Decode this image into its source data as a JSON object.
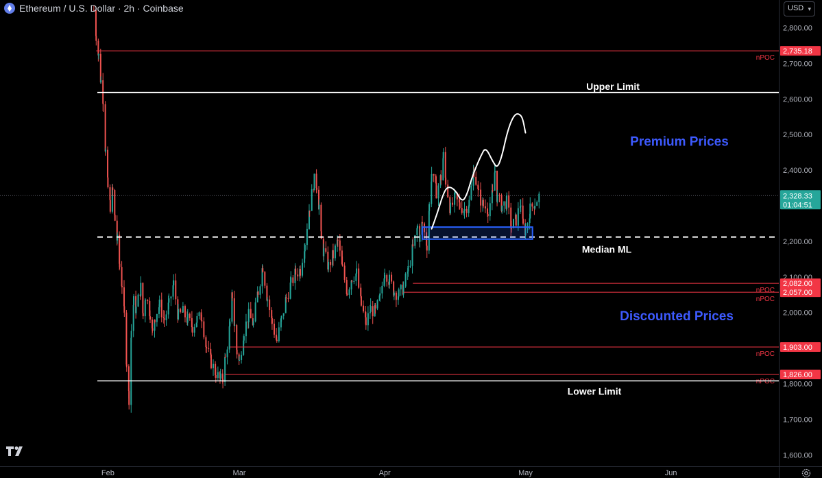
{
  "header": {
    "title": "Ethereum / U.S. Dollar · 2h · Coinbase",
    "currency_button": "USD"
  },
  "colors": {
    "background": "#000000",
    "candle_up": "#26a69a",
    "candle_down": "#ef5350",
    "npoc_line": "#f23645",
    "label_bg": "#f23645",
    "zone_text": "#3d5afe",
    "current_price_bg": "#26a69a",
    "box_stroke": "#2962ff"
  },
  "chart_data": {
    "type": "candlestick",
    "symbol": "Ethereum / U.S. Dollar",
    "interval": "2h",
    "exchange": "Coinbase",
    "y_axis": {
      "ticks": [
        {
          "value": 2800,
          "label": "2,800.00"
        },
        {
          "value": 2700,
          "label": "2,700.00"
        },
        {
          "value": 2600,
          "label": "2,600.00"
        },
        {
          "value": 2500,
          "label": "2,500.00"
        },
        {
          "value": 2400,
          "label": "2,400.00"
        },
        {
          "value": 2200,
          "label": "2,200.00"
        },
        {
          "value": 2100,
          "label": "2,100.00"
        },
        {
          "value": 2000,
          "label": "2,000.00"
        },
        {
          "value": 1800,
          "label": "1,800.00"
        },
        {
          "value": 1700,
          "label": "1,700.00"
        },
        {
          "value": 1600,
          "label": "1,600.00"
        }
      ],
      "range": [
        1535,
        2878
      ]
    },
    "x_axis": {
      "ticks": [
        {
          "label": "Feb",
          "day": 32
        },
        {
          "label": "Mar",
          "day": 60
        },
        {
          "label": "Apr",
          "day": 91
        },
        {
          "label": "May",
          "day": 121
        },
        {
          "label": "Jun",
          "day": 152
        }
      ],
      "range": [
        9,
        175
      ]
    },
    "series": [
      {
        "type": "price",
        "points": [
          [
            29,
            2850
          ],
          [
            29.5,
            2780
          ],
          [
            30,
            2720
          ],
          [
            30.5,
            2650
          ],
          [
            31,
            2600
          ],
          [
            31.5,
            2450
          ],
          [
            32,
            2350
          ],
          [
            32.5,
            2300
          ],
          [
            33,
            2340
          ],
          [
            33.5,
            2260
          ],
          [
            34,
            2200
          ],
          [
            34.5,
            2130
          ],
          [
            35,
            2080
          ],
          [
            35.5,
            1990
          ],
          [
            36,
            1860
          ],
          [
            36.5,
            1760
          ],
          [
            37,
            1950
          ],
          [
            37.5,
            2030
          ],
          [
            38,
            2010
          ],
          [
            39,
            2070
          ],
          [
            39.5,
            1990
          ],
          [
            40,
            2050
          ],
          [
            41,
            2000
          ],
          [
            41.5,
            1940
          ],
          [
            42,
            1990
          ],
          [
            43,
            2020
          ],
          [
            44,
            1980
          ],
          [
            45,
            2020
          ],
          [
            46,
            2080
          ],
          [
            47,
            1990
          ],
          [
            48,
            2000
          ],
          [
            49,
            1980
          ],
          [
            50,
            1960
          ],
          [
            51,
            1980
          ],
          [
            52,
            1990
          ],
          [
            53,
            1900
          ],
          [
            54,
            1860
          ],
          [
            55,
            1830
          ],
          [
            56,
            1810
          ],
          [
            56.5,
            1820
          ],
          [
            57,
            1870
          ],
          [
            58,
            1960
          ],
          [
            58.5,
            2050
          ],
          [
            59,
            1960
          ],
          [
            59.5,
            1890
          ],
          [
            60,
            1860
          ],
          [
            61,
            1950
          ],
          [
            62,
            1990
          ],
          [
            63,
            1970
          ],
          [
            64,
            2060
          ],
          [
            65,
            2130
          ],
          [
            66,
            2040
          ],
          [
            67,
            1970
          ],
          [
            68,
            1920
          ],
          [
            69,
            1980
          ],
          [
            70,
            2040
          ],
          [
            71,
            2080
          ],
          [
            72,
            2110
          ],
          [
            73,
            2120
          ],
          [
            74,
            2200
          ],
          [
            75,
            2300
          ],
          [
            76,
            2370
          ],
          [
            76.5,
            2360
          ],
          [
            77,
            2300
          ],
          [
            77.5,
            2200
          ],
          [
            78,
            2170
          ],
          [
            79,
            2130
          ],
          [
            80,
            2160
          ],
          [
            81,
            2200
          ],
          [
            82,
            2120
          ],
          [
            83,
            2060
          ],
          [
            84,
            2100
          ],
          [
            85,
            2110
          ],
          [
            86,
            2020
          ],
          [
            87,
            1970
          ],
          [
            88,
            2010
          ],
          [
            89,
            2000
          ],
          [
            90,
            2040
          ],
          [
            91,
            2120
          ],
          [
            92,
            2090
          ],
          [
            93,
            2060
          ],
          [
            94,
            2050
          ],
          [
            95,
            2070
          ],
          [
            96,
            2120
          ],
          [
            97,
            2180
          ],
          [
            98,
            2240
          ],
          [
            98.5,
            2210
          ],
          [
            99,
            2250
          ],
          [
            100,
            2190
          ],
          [
            100.5,
            2300
          ],
          [
            101,
            2390
          ],
          [
            102,
            2340
          ],
          [
            103,
            2380
          ],
          [
            103.5,
            2440
          ],
          [
            104,
            2370
          ],
          [
            105,
            2290
          ],
          [
            106,
            2320
          ],
          [
            107,
            2300
          ],
          [
            108,
            2290
          ],
          [
            109,
            2310
          ],
          [
            110,
            2400
          ],
          [
            111,
            2330
          ],
          [
            112,
            2300
          ],
          [
            113,
            2290
          ],
          [
            114,
            2330
          ],
          [
            114.5,
            2400
          ],
          [
            115,
            2320
          ],
          [
            116,
            2300
          ],
          [
            117,
            2310
          ],
          [
            118,
            2240
          ],
          [
            119,
            2260
          ],
          [
            120,
            2310
          ],
          [
            120.5,
            2240
          ],
          [
            121,
            2230
          ],
          [
            122,
            2290
          ],
          [
            123,
            2310
          ],
          [
            124,
            2328.33
          ]
        ]
      }
    ],
    "current_price": {
      "value": 2328.33,
      "label": "2,328.33",
      "countdown": "01:04:51"
    },
    "levels": [
      {
        "name": "npoc-2735",
        "value": 2735.18,
        "label": "2,735.18",
        "tag": "nPOC",
        "from_day": 29.5
      },
      {
        "name": "npoc-2082",
        "value": 2082.0,
        "label": "2,082.00",
        "tag": "nPOC",
        "from_day": 97
      },
      {
        "name": "npoc-2057",
        "value": 2057.0,
        "label": "2,057.00",
        "tag": "nPOC",
        "from_day": 95
      },
      {
        "name": "npoc-1903",
        "value": 1903.0,
        "label": "1,903.00",
        "tag": "nPOC",
        "from_day": 58
      },
      {
        "name": "npoc-1826",
        "value": 1826.0,
        "label": "1,826.00",
        "tag": "nPOC",
        "from_day": 57
      }
    ],
    "annotations": {
      "upper_limit": {
        "value": 2618,
        "label": "Upper Limit"
      },
      "median_ml": {
        "value": 2212,
        "label": "Median ML"
      },
      "lower_limit": {
        "value": 1808,
        "label": "Lower Limit"
      },
      "premium_zone": {
        "label": "Premium Prices",
        "value": 2480
      },
      "discount_zone": {
        "label": "Discounted Prices",
        "value": 1990
      },
      "demand_box": {
        "day_from": 99,
        "day_to": 122.5,
        "price_low": 2206,
        "price_high": 2240
      },
      "projection_path": [
        [
          101,
          2235
        ],
        [
          102,
          2270
        ],
        [
          103.5,
          2335
        ],
        [
          104.5,
          2355
        ],
        [
          106,
          2345
        ],
        [
          107.5,
          2310
        ],
        [
          108.5,
          2330
        ],
        [
          109.5,
          2375
        ],
        [
          110.5,
          2410
        ],
        [
          111.5,
          2440
        ],
        [
          112.5,
          2465
        ],
        [
          114,
          2425
        ],
        [
          115,
          2405
        ],
        [
          116,
          2440
        ],
        [
          117,
          2500
        ],
        [
          118,
          2540
        ],
        [
          119,
          2560
        ],
        [
          120,
          2555
        ],
        [
          120.5,
          2540
        ],
        [
          121,
          2505
        ]
      ]
    }
  }
}
